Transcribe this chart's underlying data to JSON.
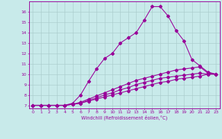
{
  "xlabel": "Windchill (Refroidissement éolien,°C)",
  "bg_color": "#c8eaea",
  "grid_color": "#aacccc",
  "line_color": "#990099",
  "xlim": [
    -0.5,
    23.5
  ],
  "ylim": [
    6.7,
    17.0
  ],
  "yticks": [
    7,
    8,
    9,
    10,
    11,
    12,
    13,
    14,
    15,
    16
  ],
  "xticks": [
    0,
    1,
    2,
    3,
    4,
    5,
    6,
    7,
    8,
    9,
    10,
    11,
    12,
    13,
    14,
    15,
    16,
    17,
    18,
    19,
    20,
    21,
    22,
    23
  ],
  "lines": [
    [
      7.0,
      7.0,
      7.0,
      7.0,
      7.0,
      7.2,
      8.0,
      9.3,
      10.5,
      11.5,
      12.0,
      13.0,
      13.5,
      14.0,
      15.2,
      16.5,
      16.5,
      15.6,
      14.2,
      13.2,
      11.4,
      10.8,
      10.2,
      10.0
    ],
    [
      7.0,
      7.0,
      7.0,
      7.0,
      7.0,
      7.1,
      7.3,
      7.6,
      7.9,
      8.2,
      8.5,
      8.8,
      9.1,
      9.4,
      9.6,
      9.8,
      10.0,
      10.2,
      10.4,
      10.5,
      10.6,
      10.7,
      10.1,
      10.0
    ],
    [
      7.0,
      7.0,
      7.0,
      7.0,
      7.0,
      7.1,
      7.2,
      7.5,
      7.7,
      8.0,
      8.2,
      8.5,
      8.7,
      9.0,
      9.2,
      9.4,
      9.6,
      9.7,
      9.8,
      9.9,
      10.0,
      10.1,
      10.0,
      10.0
    ],
    [
      7.0,
      7.0,
      7.0,
      7.0,
      7.0,
      7.1,
      7.2,
      7.4,
      7.6,
      7.8,
      8.0,
      8.2,
      8.4,
      8.6,
      8.8,
      9.0,
      9.2,
      9.3,
      9.5,
      9.6,
      9.7,
      9.8,
      10.0,
      10.0
    ]
  ]
}
